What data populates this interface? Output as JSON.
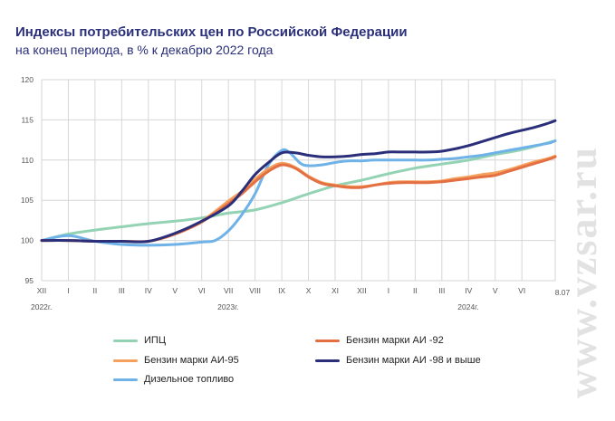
{
  "chart_data": {
    "type": "line",
    "title": "Индексы потребительских цен по Российской Федерации",
    "subtitle": "на конец периода, в % к декабрю 2022 года",
    "ylim": [
      95,
      120
    ],
    "yticks": [
      95,
      100,
      105,
      110,
      115,
      120
    ],
    "grid": true,
    "x_labels": [
      "XII",
      "I",
      "II",
      "III",
      "IV",
      "V",
      "VI",
      "VII",
      "VIII",
      "IX",
      "X",
      "XI",
      "XII",
      "I",
      "II",
      "III",
      "IV",
      "V",
      "VI",
      "8.07"
    ],
    "year_labels": [
      {
        "text": "2022г.",
        "month_index": 0
      },
      {
        "text": "2023г.",
        "month_index": 7
      },
      {
        "text": "2024г.",
        "month_index": 16
      }
    ],
    "legend_position": "bottom",
    "series": [
      {
        "name": "ИПЦ",
        "color": "#93d3b4",
        "x": [
          0,
          1,
          2,
          3,
          4,
          5,
          6,
          7,
          8,
          9,
          10,
          11,
          12,
          13,
          14,
          15,
          16,
          17,
          18,
          19.25
        ],
        "values": [
          100,
          100.8,
          101.3,
          101.7,
          102.1,
          102.4,
          102.8,
          103.4,
          103.8,
          104.7,
          105.8,
          106.8,
          107.5,
          108.3,
          109.0,
          109.5,
          110.0,
          110.7,
          111.3,
          112.4
        ]
      },
      {
        "name": "Бензин марки АИ -92",
        "color": "#e36f43",
        "x": [
          0,
          1,
          2,
          3,
          4,
          5,
          6,
          7,
          7.5,
          8,
          8.5,
          9,
          9.5,
          10,
          10.5,
          11,
          11.5,
          12,
          12.5,
          13,
          13.5,
          14,
          14.5,
          15,
          15.5,
          16,
          16.5,
          17,
          17.5,
          18,
          18.5,
          19,
          19.25
        ],
        "values": [
          100,
          100,
          99.9,
          99.9,
          99.9,
          100.8,
          102.3,
          104.6,
          105.8,
          107.3,
          108.6,
          109.4,
          109.0,
          107.9,
          107.1,
          106.8,
          106.6,
          106.6,
          106.9,
          107.1,
          107.2,
          107.2,
          107.2,
          107.3,
          107.5,
          107.7,
          107.9,
          108.1,
          108.6,
          109.1,
          109.6,
          110.1,
          110.4
        ]
      },
      {
        "name": "Бензин марки АИ-95",
        "color": "#f5a05c",
        "x": [
          0,
          1,
          2,
          3,
          4,
          5,
          6,
          7,
          7.5,
          8,
          8.5,
          9,
          9.5,
          10,
          10.5,
          11,
          11.5,
          12,
          12.5,
          13,
          13.5,
          14,
          14.5,
          15,
          15.5,
          16,
          16.5,
          17,
          17.5,
          18,
          18.5,
          19,
          19.25
        ],
        "values": [
          100,
          100,
          99.9,
          99.9,
          99.9,
          100.8,
          102.4,
          104.9,
          106.1,
          107.6,
          108.9,
          109.6,
          109.1,
          108.0,
          107.2,
          106.9,
          106.7,
          106.7,
          106.9,
          107.2,
          107.3,
          107.3,
          107.3,
          107.4,
          107.7,
          107.9,
          108.2,
          108.4,
          108.8,
          109.3,
          109.8,
          110.2,
          110.5
        ]
      },
      {
        "name": "Бензин марки АИ -98 и выше",
        "color": "#2b2f7a",
        "x": [
          0,
          1,
          2,
          3,
          4,
          5,
          6,
          7,
          7.5,
          8,
          8.5,
          9,
          9.5,
          10,
          10.5,
          11,
          11.5,
          12,
          12.5,
          13,
          13.5,
          14,
          14.5,
          15,
          15.5,
          16,
          16.5,
          17,
          17.5,
          18,
          18.5,
          19,
          19.25
        ],
        "values": [
          100,
          100,
          99.9,
          99.9,
          99.9,
          100.9,
          102.4,
          104.3,
          106.1,
          108.2,
          109.7,
          110.9,
          110.9,
          110.6,
          110.4,
          110.4,
          110.5,
          110.7,
          110.8,
          111.0,
          111.0,
          111.0,
          111.0,
          111.1,
          111.4,
          111.8,
          112.3,
          112.8,
          113.3,
          113.7,
          114.1,
          114.6,
          114.9
        ]
      },
      {
        "name": "Дизельное топливо",
        "color": "#6fb2e8",
        "x": [
          0,
          1,
          2,
          3,
          4,
          5,
          6,
          6.5,
          7,
          7.5,
          8,
          8.5,
          9,
          9.3,
          9.7,
          10,
          10.5,
          11,
          11.5,
          12,
          12.5,
          13,
          13.5,
          14,
          14.5,
          15,
          15.5,
          16,
          16.5,
          17,
          17.5,
          18,
          18.5,
          19,
          19.25
        ],
        "values": [
          100,
          100.6,
          99.9,
          99.5,
          99.4,
          99.5,
          99.8,
          100.0,
          101.2,
          103.2,
          105.8,
          109.4,
          111.2,
          110.9,
          109.6,
          109.3,
          109.4,
          109.7,
          109.9,
          109.9,
          110.0,
          110.0,
          110.0,
          110.0,
          110.0,
          110.1,
          110.2,
          110.4,
          110.6,
          110.9,
          111.2,
          111.5,
          111.8,
          112.1,
          112.4
        ]
      }
    ]
  },
  "watermark": "www.vzsar.ru"
}
